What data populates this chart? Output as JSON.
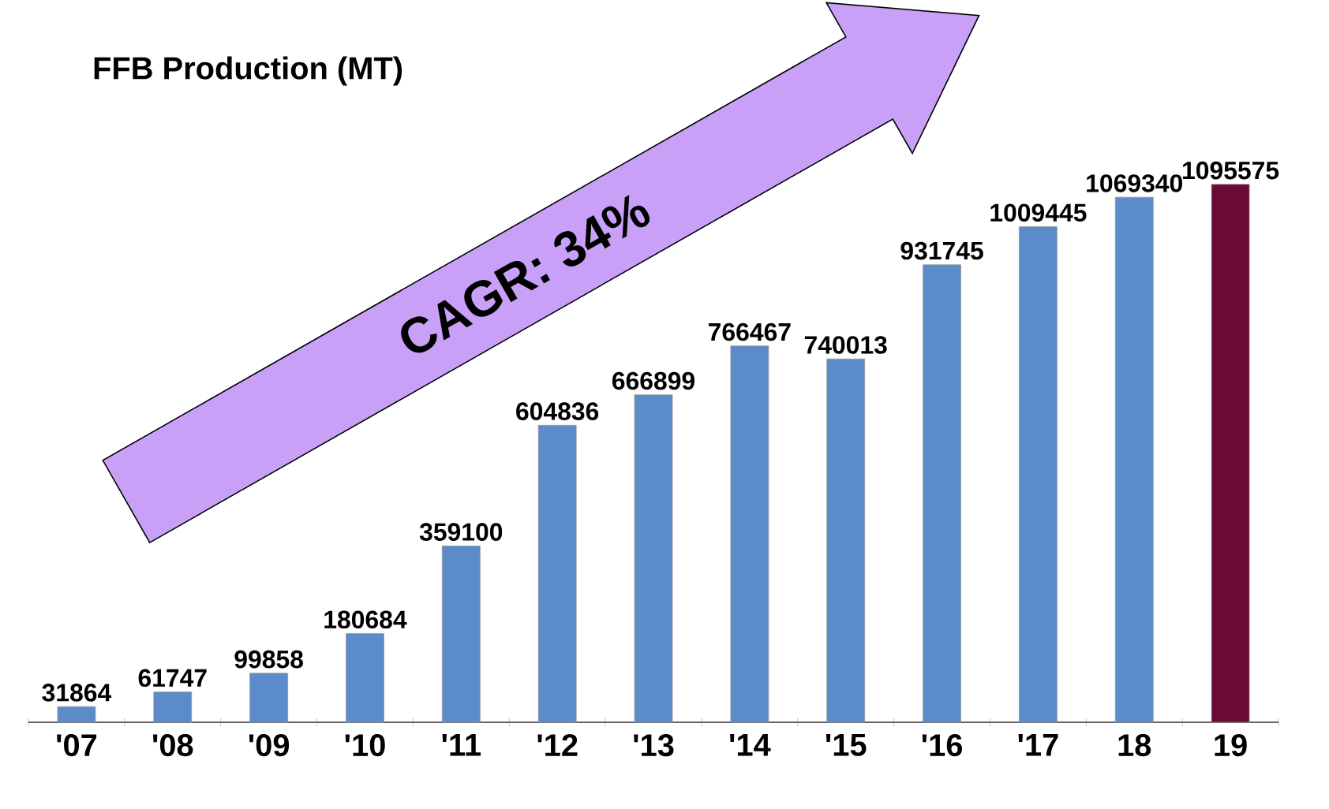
{
  "chart_data": {
    "type": "bar",
    "title": "FFB Production (MT)",
    "categories": [
      "'07",
      "'08",
      "'09",
      "'10",
      "'11",
      "'12",
      "'13",
      "'14",
      "'15",
      "'16",
      "'17",
      "18",
      "19"
    ],
    "values": [
      31864,
      61747,
      99858,
      180684,
      359100,
      604836,
      666899,
      766467,
      740013,
      931745,
      1009445,
      1069340,
      1095575
    ],
    "colors": [
      "#5b8bc9",
      "#5b8bc9",
      "#5b8bc9",
      "#5b8bc9",
      "#5b8bc9",
      "#5b8bc9",
      "#5b8bc9",
      "#5b8bc9",
      "#5b8bc9",
      "#5b8bc9",
      "#5b8bc9",
      "#5b8bc9",
      "#6b0a35"
    ],
    "data_labels": true,
    "annotations": [
      "CAGR: 34%"
    ]
  }
}
